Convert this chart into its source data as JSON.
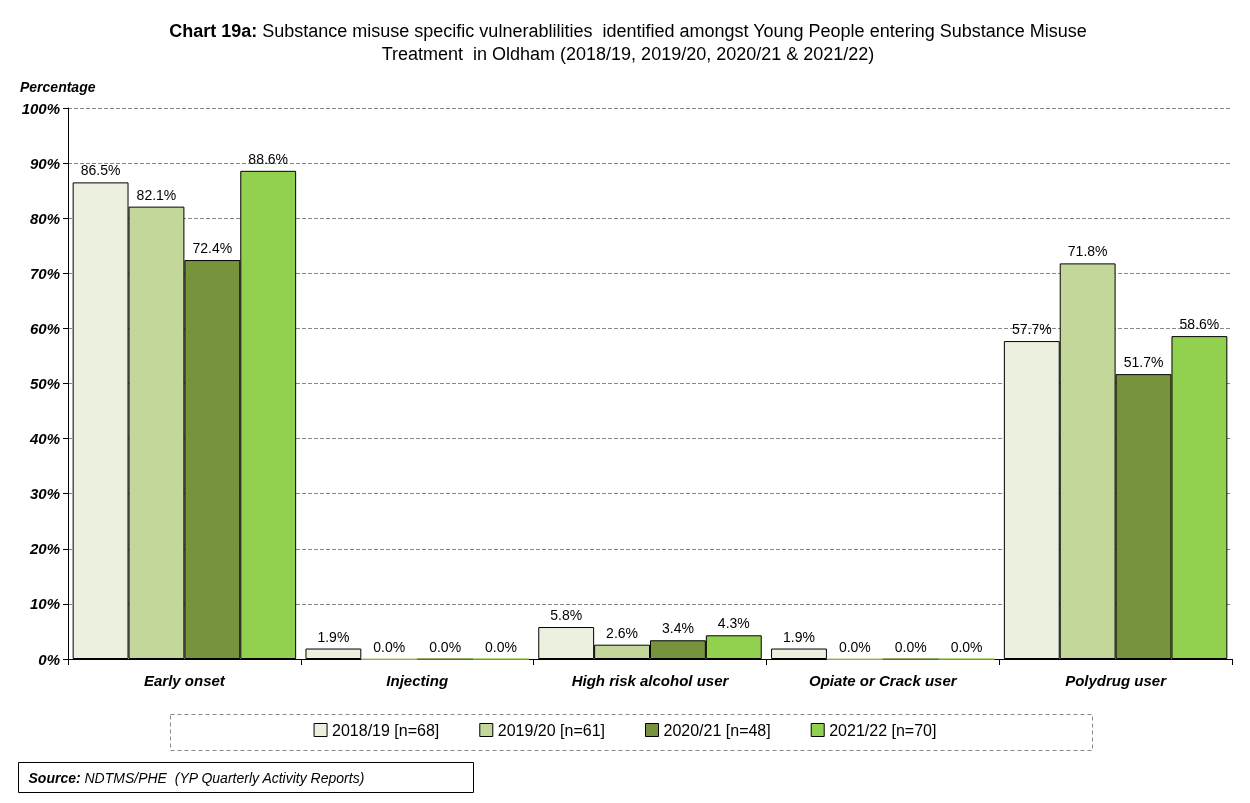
{
  "chart_data": {
    "type": "bar",
    "title": "Chart 19a: Substance misuse specific vulnerablilities  identified amongst Young People entering Substance Misuse Treatment  in Oldham (2018/19, 2019/20, 2020/21 & 2021/22)",
    "ylabel": "Percentage",
    "categories": [
      "Early onset",
      "Injecting",
      "High risk alcohol user",
      "Opiate or Crack user",
      "Polydrug user"
    ],
    "series": [
      {
        "name": "2018/19 [n=68]",
        "color": "#ebf1de",
        "values": [
          86.5,
          1.9,
          5.8,
          1.9,
          57.7
        ],
        "value_labels": [
          "86.5%",
          "1.9%",
          "5.8%",
          "1.9%",
          "57.7%"
        ]
      },
      {
        "name": "2019/20 [n=61]",
        "color": "#c4d79b",
        "values": [
          82.1,
          0.0,
          2.6,
          0.0,
          71.8
        ],
        "value_labels": [
          "82.1%",
          "0.0%",
          "2.6%",
          "0.0%",
          "71.8%"
        ]
      },
      {
        "name": "2020/21 [n=48]",
        "color": "#77933c",
        "values": [
          72.4,
          0.0,
          3.4,
          0.0,
          51.7
        ],
        "value_labels": [
          "72.4%",
          "0.0%",
          "3.4%",
          "0.0%",
          "51.7%"
        ]
      },
      {
        "name": "2021/22 [n=70]",
        "color": "#92d050",
        "values": [
          88.6,
          0.0,
          4.3,
          0.0,
          58.6
        ],
        "value_labels": [
          "88.6%",
          "0.0%",
          "4.3%",
          "0.0%",
          "58.6%"
        ]
      }
    ],
    "ylim": [
      0,
      100
    ],
    "yticks": [
      {
        "value": 0,
        "label": "0%"
      },
      {
        "value": 10,
        "label": "10%"
      },
      {
        "value": 20,
        "label": "20%"
      },
      {
        "value": 30,
        "label": "30%"
      },
      {
        "value": 40,
        "label": "40%"
      },
      {
        "value": 50,
        "label": "50%"
      },
      {
        "value": 60,
        "label": "60%"
      },
      {
        "value": 70,
        "label": "70%"
      },
      {
        "value": 80,
        "label": "80%"
      },
      {
        "value": 90,
        "label": "90%"
      },
      {
        "value": 100,
        "label": "100%"
      }
    ],
    "grid": "y",
    "legend": "bottom",
    "annotations": [
      "Source: NDTMS/PHE  (YP Quarterly Activity Reports)"
    ]
  }
}
